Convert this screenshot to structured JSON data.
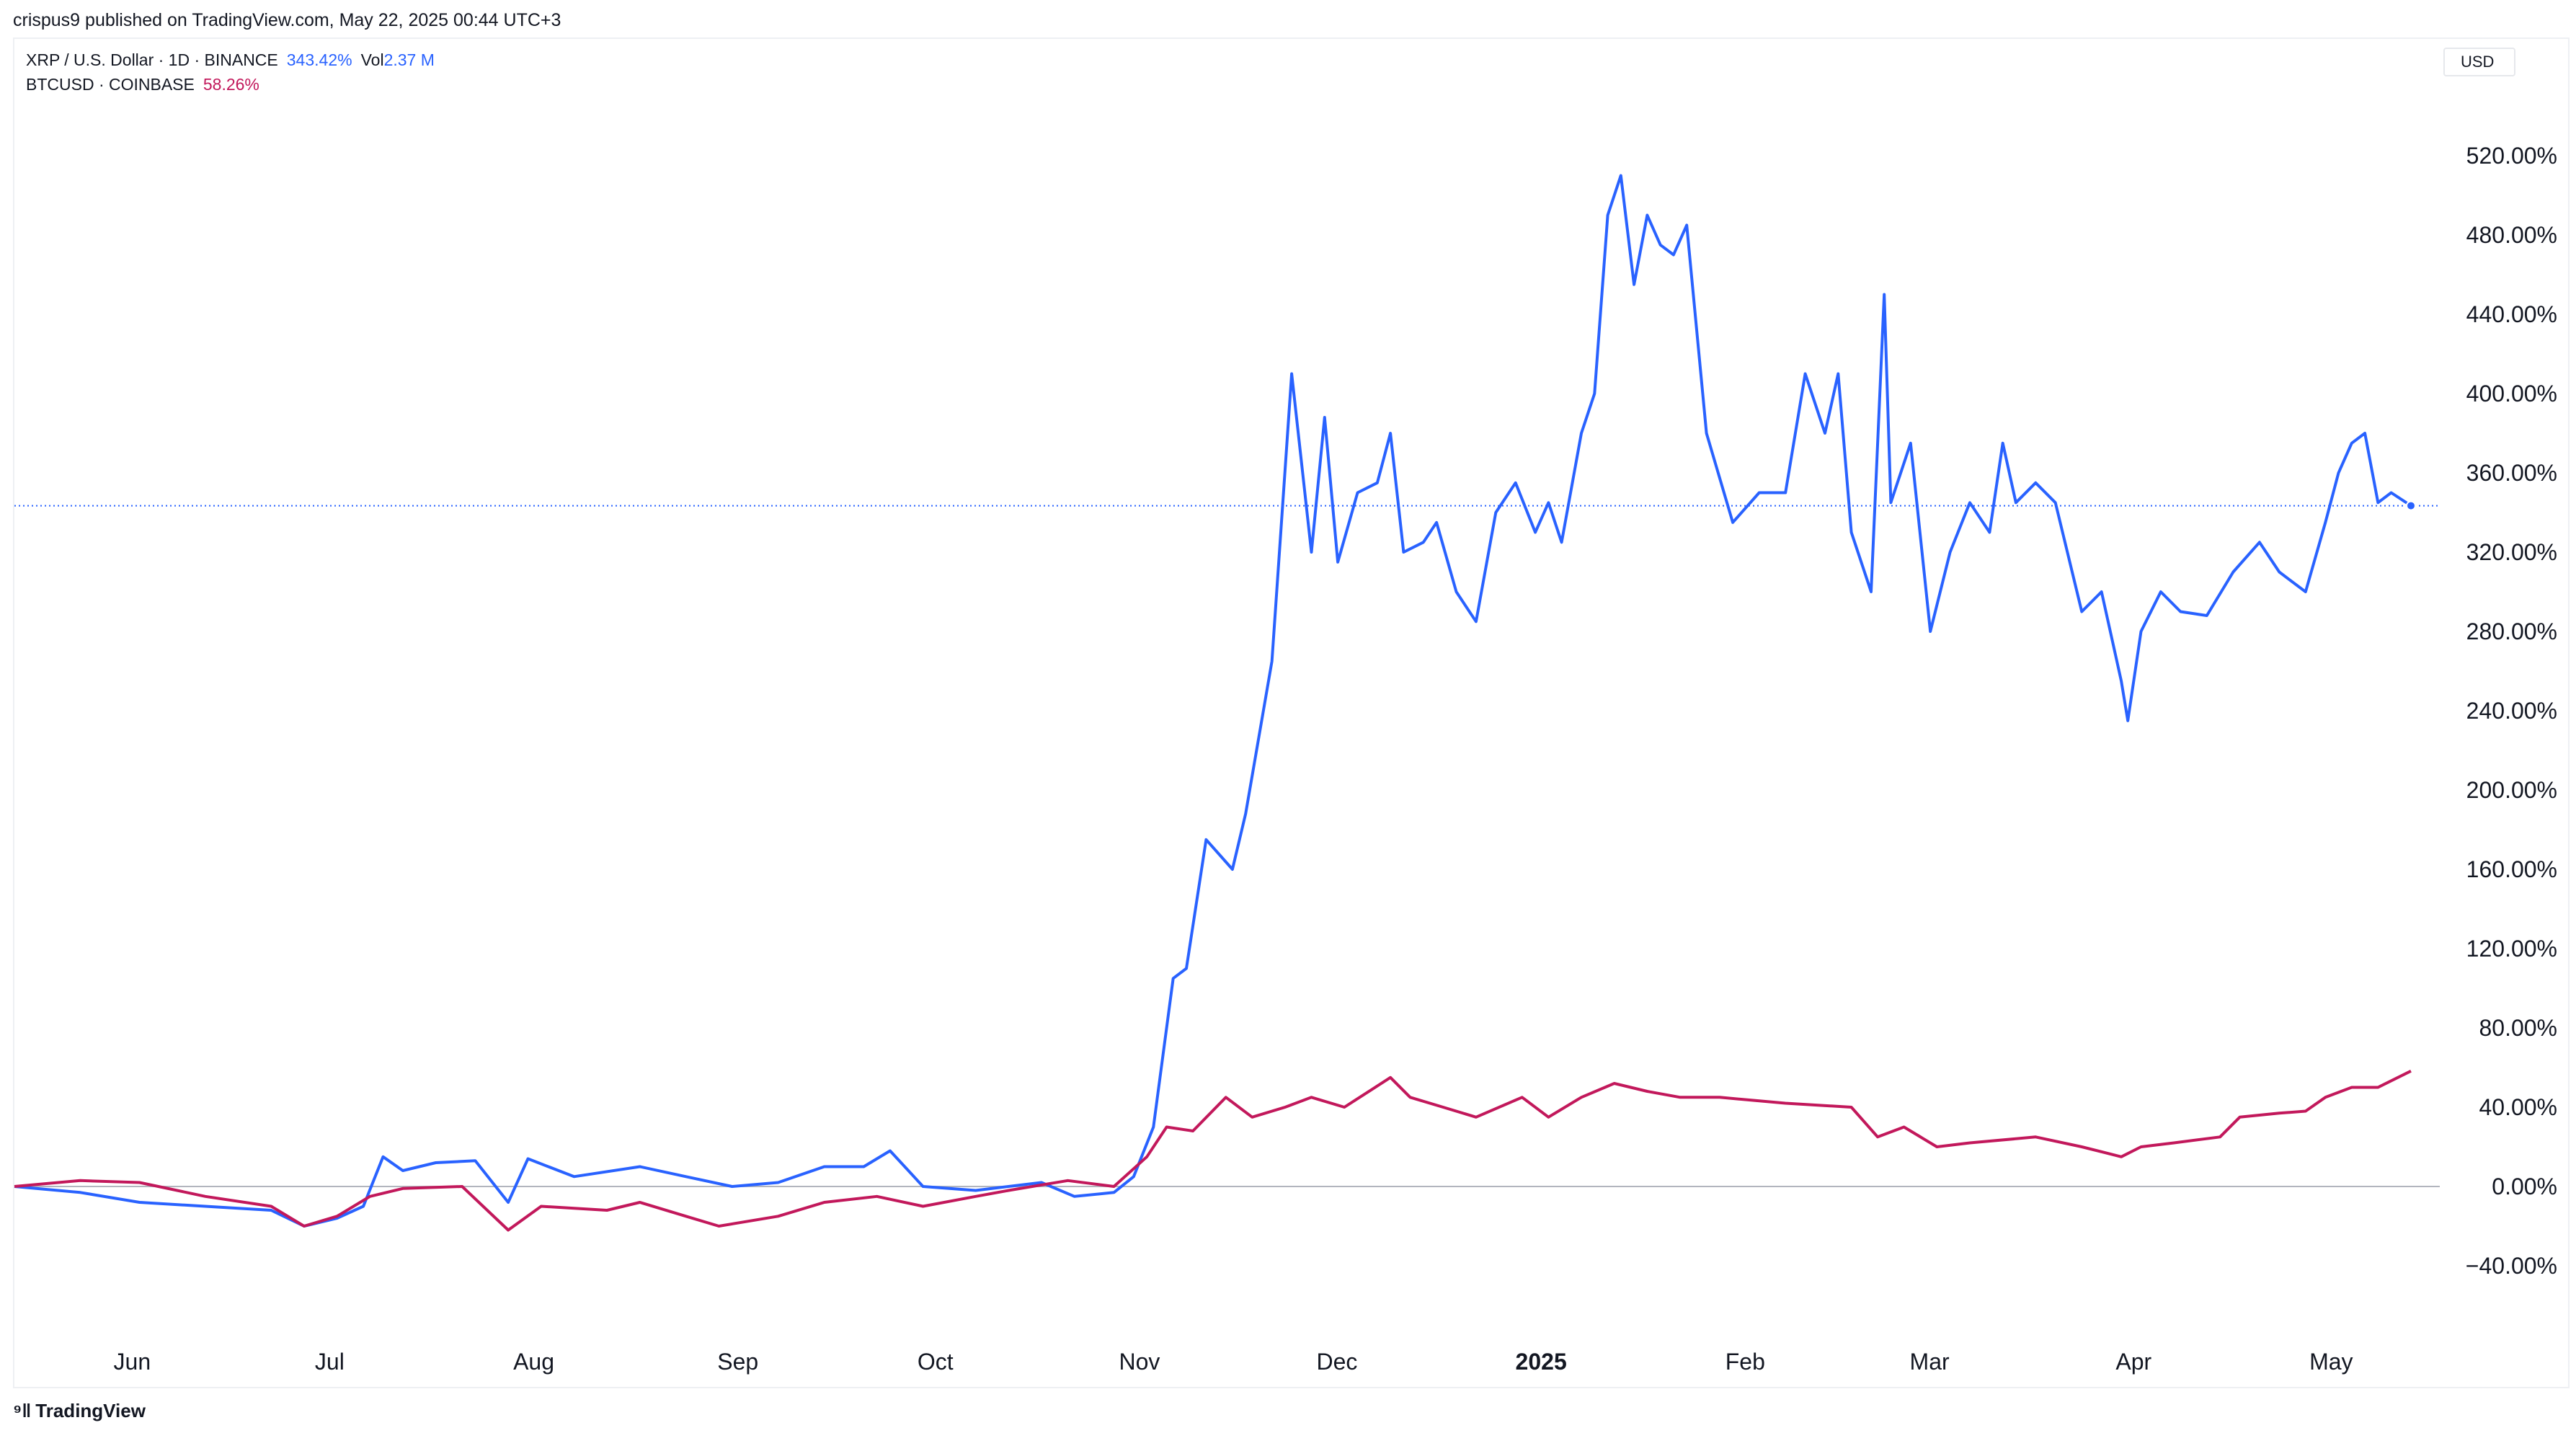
{
  "header": {
    "published": "crispus9 published on TradingView.com, May 22, 2025 00:44 UTC+3"
  },
  "legend": {
    "xrp": {
      "symbol": "XRP / U.S. Dollar · 1D · BINANCE",
      "change": "343.42%",
      "vol_label": "Vol",
      "vol_value": "2.37 M"
    },
    "btc": {
      "symbol": "BTCUSD · COINBASE",
      "change": "58.26%"
    }
  },
  "currency_button": "USD",
  "footer": {
    "brand": "TradingView"
  },
  "colors": {
    "xrp": "#2962ff",
    "btc": "#c2185b"
  },
  "chart_data": {
    "type": "line",
    "yaxis_unit": "percent change",
    "ylim": [
      -60,
      560
    ],
    "yticks": [
      "520.00%",
      "480.00%",
      "440.00%",
      "400.00%",
      "360.00%",
      "320.00%",
      "280.00%",
      "240.00%",
      "200.00%",
      "160.00%",
      "120.00%",
      "80.00%",
      "40.00%",
      "0.00%",
      "−40.00%"
    ],
    "x_labels": [
      {
        "label": "Jun",
        "date": "2024-06-01"
      },
      {
        "label": "Jul",
        "date": "2024-07-01"
      },
      {
        "label": "Aug",
        "date": "2024-08-01"
      },
      {
        "label": "Sep",
        "date": "2024-09-01"
      },
      {
        "label": "Oct",
        "date": "2024-10-01"
      },
      {
        "label": "Nov",
        "date": "2024-11-01"
      },
      {
        "label": "Dec",
        "date": "2024-12-01"
      },
      {
        "label": "2025",
        "date": "2025-01-01",
        "bold": true
      },
      {
        "label": "Feb",
        "date": "2025-02-01"
      },
      {
        "label": "Mar",
        "date": "2025-03-01"
      },
      {
        "label": "Apr",
        "date": "2025-04-01"
      },
      {
        "label": "May",
        "date": "2025-05-01"
      }
    ],
    "series": [
      {
        "name": "XRP / U.S. Dollar · 1D · BINANCE",
        "color": "#2962ff",
        "last_value": 343.42,
        "points": [
          [
            "2024-05-22",
            0
          ],
          [
            "2024-06-01",
            -3
          ],
          [
            "2024-06-10",
            -8
          ],
          [
            "2024-06-20",
            -10
          ],
          [
            "2024-06-30",
            -12
          ],
          [
            "2024-07-05",
            -20
          ],
          [
            "2024-07-10",
            -16
          ],
          [
            "2024-07-14",
            -10
          ],
          [
            "2024-07-17",
            15
          ],
          [
            "2024-07-20",
            8
          ],
          [
            "2024-07-25",
            12
          ],
          [
            "2024-07-31",
            13
          ],
          [
            "2024-08-05",
            -8
          ],
          [
            "2024-08-08",
            14
          ],
          [
            "2024-08-15",
            5
          ],
          [
            "2024-08-25",
            10
          ],
          [
            "2024-09-01",
            5
          ],
          [
            "2024-09-08",
            0
          ],
          [
            "2024-09-15",
            2
          ],
          [
            "2024-09-22",
            10
          ],
          [
            "2024-09-28",
            10
          ],
          [
            "2024-10-02",
            18
          ],
          [
            "2024-10-07",
            0
          ],
          [
            "2024-10-15",
            -2
          ],
          [
            "2024-10-25",
            2
          ],
          [
            "2024-10-30",
            -5
          ],
          [
            "2024-11-05",
            -3
          ],
          [
            "2024-11-08",
            5
          ],
          [
            "2024-11-11",
            30
          ],
          [
            "2024-11-14",
            105
          ],
          [
            "2024-11-16",
            110
          ],
          [
            "2024-11-19",
            175
          ],
          [
            "2024-11-23",
            160
          ],
          [
            "2024-11-25",
            188
          ],
          [
            "2024-11-29",
            265
          ],
          [
            "2024-12-02",
            410
          ],
          [
            "2024-12-05",
            320
          ],
          [
            "2024-12-07",
            388
          ],
          [
            "2024-12-09",
            315
          ],
          [
            "2024-12-12",
            350
          ],
          [
            "2024-12-15",
            355
          ],
          [
            "2024-12-17",
            380
          ],
          [
            "2024-12-19",
            320
          ],
          [
            "2024-12-22",
            325
          ],
          [
            "2024-12-24",
            335
          ],
          [
            "2024-12-27",
            300
          ],
          [
            "2024-12-30",
            285
          ],
          [
            "2025-01-02",
            340
          ],
          [
            "2025-01-05",
            355
          ],
          [
            "2025-01-08",
            330
          ],
          [
            "2025-01-10",
            345
          ],
          [
            "2025-01-12",
            325
          ],
          [
            "2025-01-15",
            380
          ],
          [
            "2025-01-17",
            400
          ],
          [
            "2025-01-19",
            490
          ],
          [
            "2025-01-21",
            510
          ],
          [
            "2025-01-23",
            455
          ],
          [
            "2025-01-25",
            490
          ],
          [
            "2025-01-27",
            475
          ],
          [
            "2025-01-29",
            470
          ],
          [
            "2025-01-31",
            485
          ],
          [
            "2025-02-03",
            380
          ],
          [
            "2025-02-07",
            335
          ],
          [
            "2025-02-11",
            350
          ],
          [
            "2025-02-15",
            350
          ],
          [
            "2025-02-18",
            410
          ],
          [
            "2025-02-21",
            380
          ],
          [
            "2025-02-23",
            410
          ],
          [
            "2025-02-25",
            330
          ],
          [
            "2025-02-28",
            300
          ],
          [
            "2025-03-02",
            450
          ],
          [
            "2025-03-03",
            345
          ],
          [
            "2025-03-06",
            375
          ],
          [
            "2025-03-09",
            280
          ],
          [
            "2025-03-12",
            320
          ],
          [
            "2025-03-15",
            345
          ],
          [
            "2025-03-18",
            330
          ],
          [
            "2025-03-20",
            375
          ],
          [
            "2025-03-22",
            345
          ],
          [
            "2025-03-25",
            355
          ],
          [
            "2025-03-28",
            345
          ],
          [
            "2025-04-01",
            290
          ],
          [
            "2025-04-04",
            300
          ],
          [
            "2025-04-07",
            255
          ],
          [
            "2025-04-08",
            235
          ],
          [
            "2025-04-10",
            280
          ],
          [
            "2025-04-13",
            300
          ],
          [
            "2025-04-16",
            290
          ],
          [
            "2025-04-20",
            288
          ],
          [
            "2025-04-24",
            310
          ],
          [
            "2025-04-28",
            325
          ],
          [
            "2025-05-01",
            310
          ],
          [
            "2025-05-05",
            300
          ],
          [
            "2025-05-08",
            335
          ],
          [
            "2025-05-10",
            360
          ],
          [
            "2025-05-12",
            375
          ],
          [
            "2025-05-14",
            380
          ],
          [
            "2025-05-16",
            345
          ],
          [
            "2025-05-18",
            350
          ],
          [
            "2025-05-21",
            343.42
          ]
        ]
      },
      {
        "name": "BTCUSD · COINBASE",
        "color": "#c2185b",
        "last_value": 58.26,
        "points": [
          [
            "2024-05-22",
            0
          ],
          [
            "2024-06-01",
            3
          ],
          [
            "2024-06-10",
            2
          ],
          [
            "2024-06-20",
            -5
          ],
          [
            "2024-06-30",
            -10
          ],
          [
            "2024-07-05",
            -20
          ],
          [
            "2024-07-10",
            -15
          ],
          [
            "2024-07-15",
            -5
          ],
          [
            "2024-07-20",
            -1
          ],
          [
            "2024-07-29",
            0
          ],
          [
            "2024-08-05",
            -22
          ],
          [
            "2024-08-10",
            -10
          ],
          [
            "2024-08-20",
            -12
          ],
          [
            "2024-08-25",
            -8
          ],
          [
            "2024-09-01",
            -15
          ],
          [
            "2024-09-06",
            -20
          ],
          [
            "2024-09-15",
            -15
          ],
          [
            "2024-09-22",
            -8
          ],
          [
            "2024-09-30",
            -5
          ],
          [
            "2024-10-07",
            -10
          ],
          [
            "2024-10-15",
            -5
          ],
          [
            "2024-10-20",
            -2
          ],
          [
            "2024-10-29",
            3
          ],
          [
            "2024-11-05",
            0
          ],
          [
            "2024-11-10",
            15
          ],
          [
            "2024-11-13",
            30
          ],
          [
            "2024-11-17",
            28
          ],
          [
            "2024-11-22",
            45
          ],
          [
            "2024-11-26",
            35
          ],
          [
            "2024-12-01",
            40
          ],
          [
            "2024-12-05",
            45
          ],
          [
            "2024-12-10",
            40
          ],
          [
            "2024-12-17",
            55
          ],
          [
            "2024-12-20",
            45
          ],
          [
            "2024-12-25",
            40
          ],
          [
            "2024-12-30",
            35
          ],
          [
            "2025-01-06",
            45
          ],
          [
            "2025-01-10",
            35
          ],
          [
            "2025-01-15",
            45
          ],
          [
            "2025-01-20,",
            52
          ],
          [
            "2025-01-25",
            48
          ],
          [
            "2025-01-30",
            45
          ],
          [
            "2025-02-05",
            45
          ],
          [
            "2025-02-15",
            42
          ],
          [
            "2025-02-25",
            40
          ],
          [
            "2025-03-01",
            25
          ],
          [
            "2025-03-05",
            30
          ],
          [
            "2025-03-10",
            20
          ],
          [
            "2025-03-15",
            22
          ],
          [
            "2025-03-25",
            25
          ],
          [
            "2025-04-01",
            20
          ],
          [
            "2025-04-07",
            15
          ],
          [
            "2025-04-10",
            20
          ],
          [
            "2025-04-15",
            22
          ],
          [
            "2025-04-22",
            25
          ],
          [
            "2025-04-25",
            35
          ],
          [
            "2025-05-01",
            37
          ],
          [
            "2025-05-05",
            38
          ],
          [
            "2025-05-08",
            45
          ],
          [
            "2025-05-12",
            50
          ],
          [
            "2025-05-16",
            50
          ],
          [
            "2025-05-21",
            58.26
          ]
        ]
      }
    ]
  }
}
